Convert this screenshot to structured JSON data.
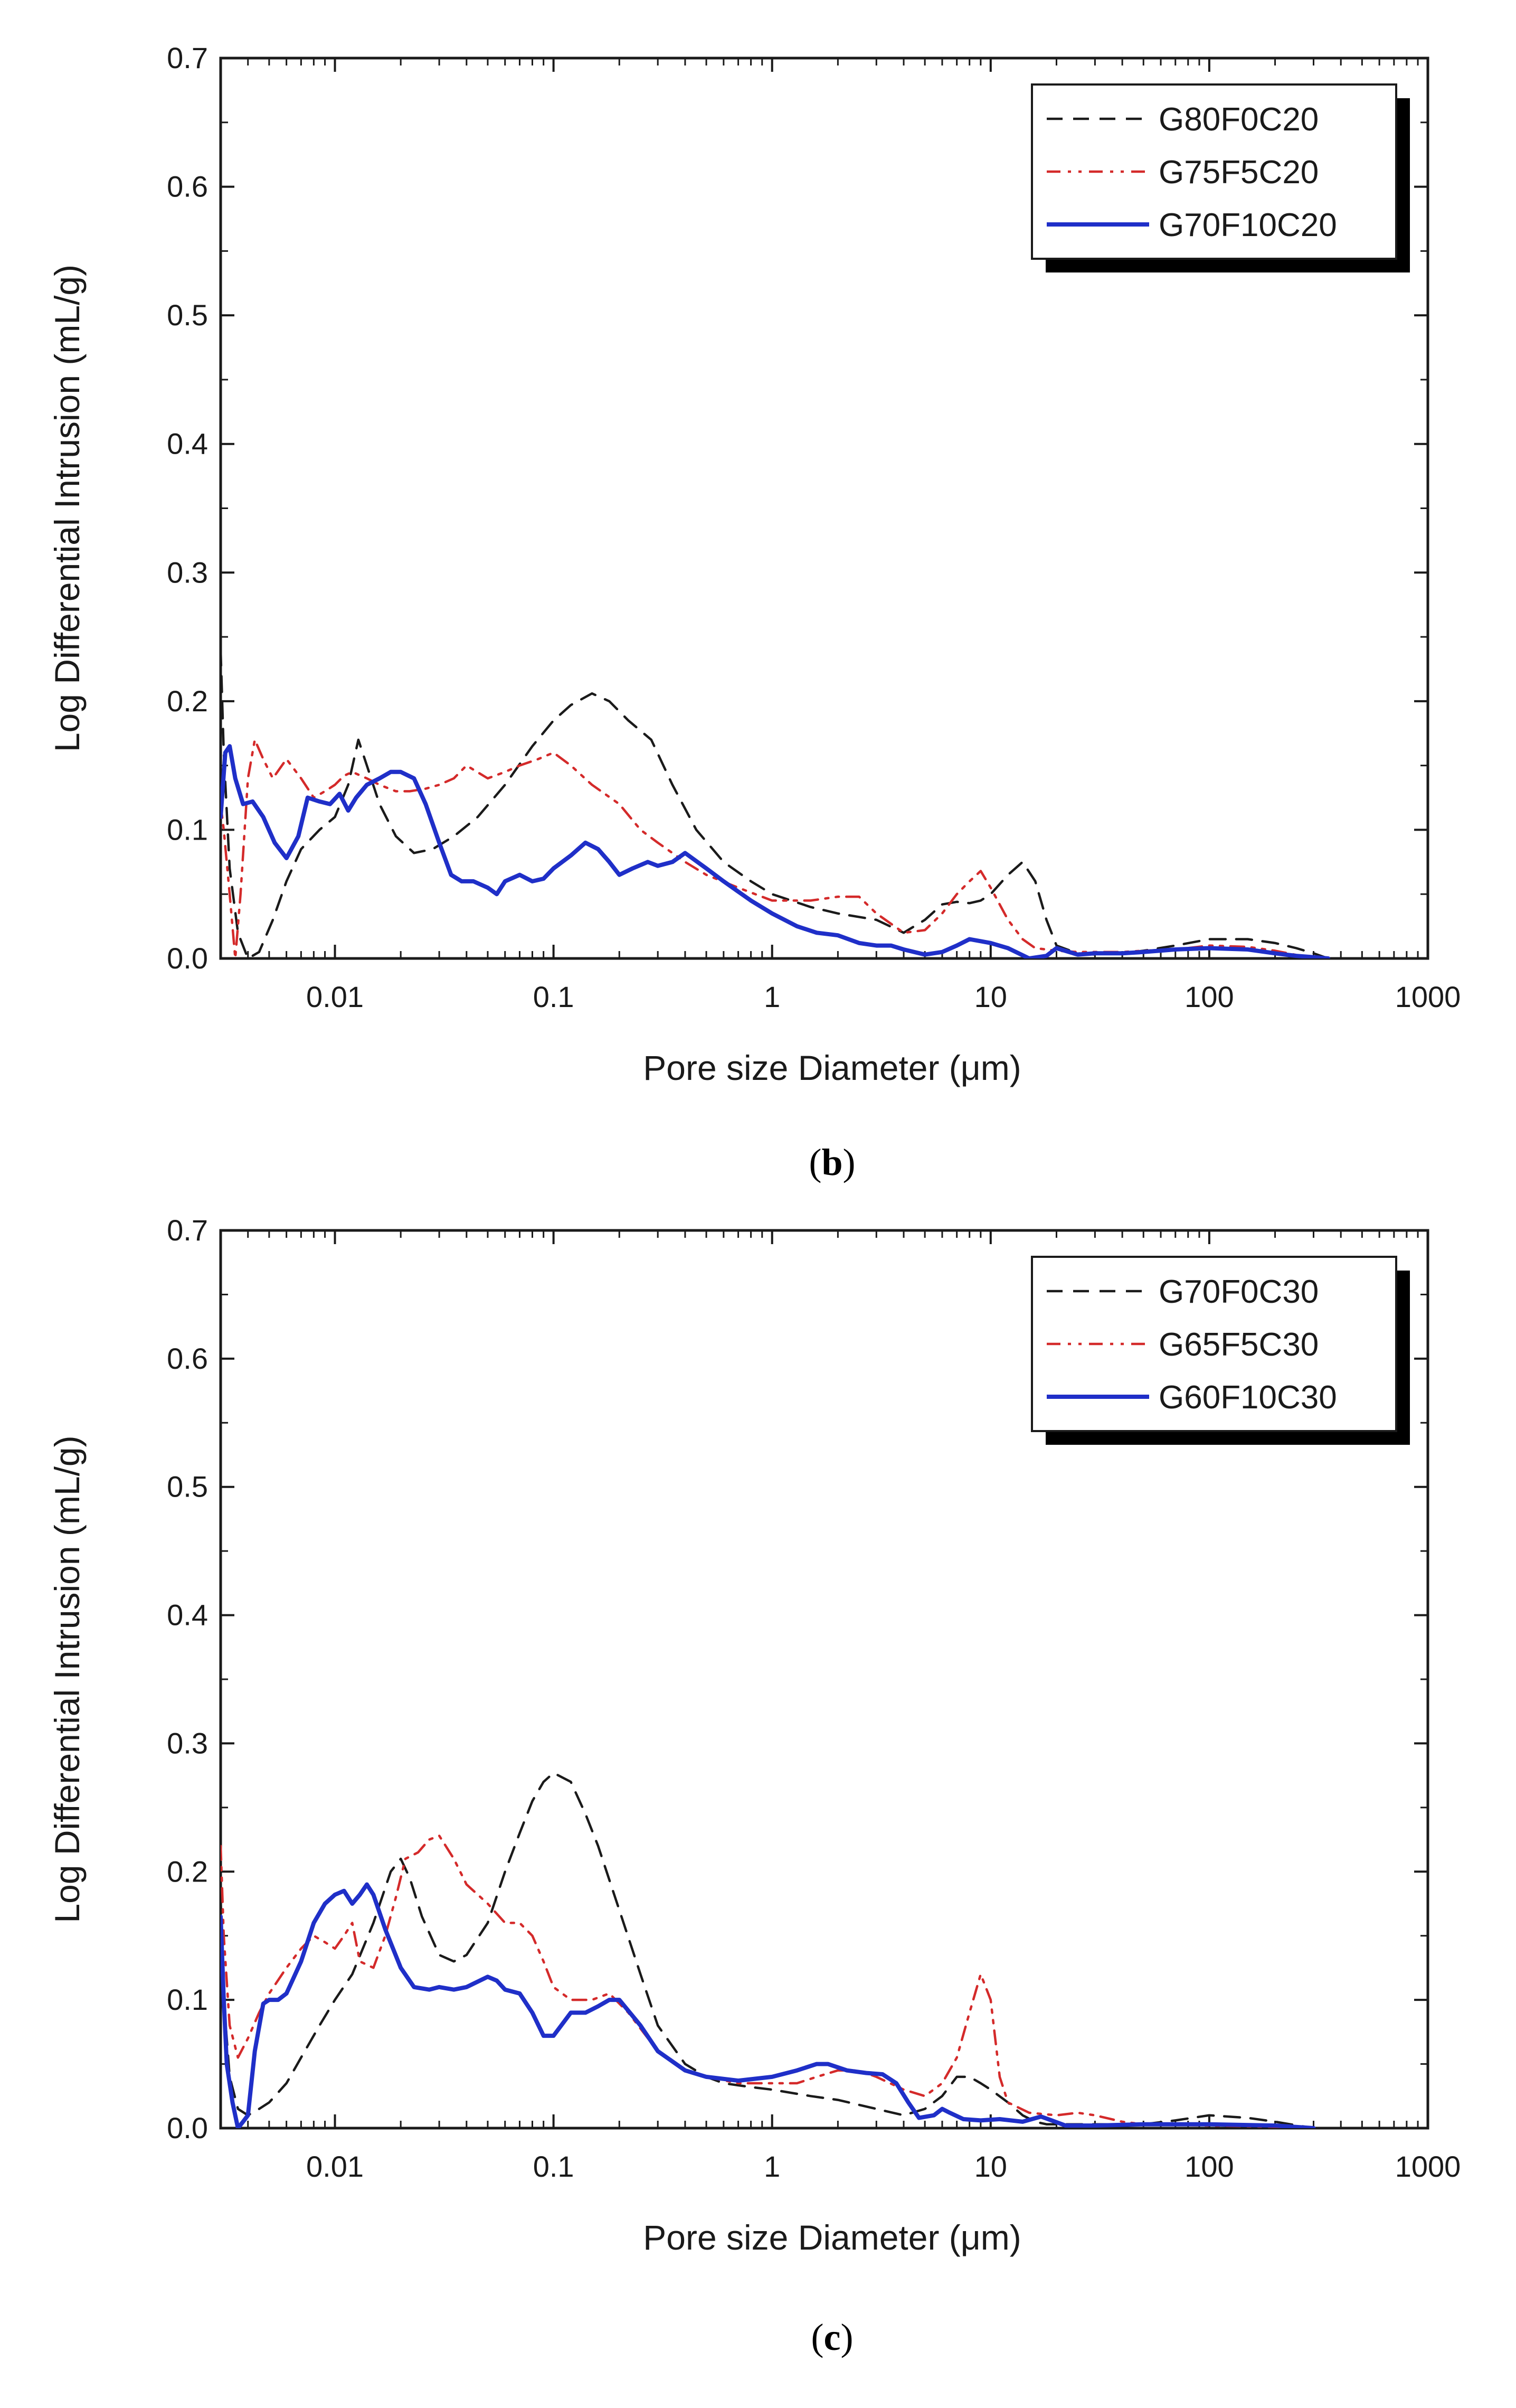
{
  "colors": {
    "series_black": "#1a1a1a",
    "series_red": "#d42a2a",
    "series_blue": "#1f2fc8",
    "axis": "#1a1a1a"
  },
  "chart_data": [
    {
      "id": "b",
      "type": "line",
      "caption_letter": "b",
      "xlabel": "Pore size Diameter (μm)",
      "ylabel": "Log Differential Intrusion (mL/g)",
      "xscale": "log",
      "xlim": [
        0.003,
        1000
      ],
      "ylim": [
        0,
        0.7
      ],
      "xticks": [
        0.01,
        0.1,
        1,
        10,
        100,
        1000
      ],
      "xtick_labels": [
        "0.01",
        "0.1",
        "1",
        "10",
        "100",
        "1000"
      ],
      "yticks": [
        0,
        0.1,
        0.2,
        0.3,
        0.4,
        0.5,
        0.6,
        0.7
      ],
      "ytick_labels": [
        "0.0",
        "0.1",
        "0.2",
        "0.3",
        "0.4",
        "0.5",
        "0.6",
        "0.7"
      ],
      "legend_position": "top-right",
      "series": [
        {
          "name": "G80F0C20",
          "color": "#1a1a1a",
          "dash": "dash",
          "x": [
            0.003,
            0.0031,
            0.0033,
            0.0036,
            0.004,
            0.0045,
            0.0052,
            0.006,
            0.007,
            0.0085,
            0.01,
            0.0115,
            0.0128,
            0.014,
            0.016,
            0.019,
            0.023,
            0.028,
            0.035,
            0.045,
            0.06,
            0.08,
            0.1,
            0.12,
            0.15,
            0.18,
            0.22,
            0.28,
            0.35,
            0.45,
            0.6,
            0.8,
            1,
            1.5,
            2,
            3,
            4,
            5,
            6,
            7,
            8,
            9,
            10,
            12,
            14,
            16,
            18,
            20,
            25,
            30,
            40,
            50,
            70,
            100,
            150,
            200,
            250,
            300,
            350
          ],
          "y": [
            0.24,
            0.16,
            0.07,
            0.02,
            0.0,
            0.005,
            0.03,
            0.06,
            0.085,
            0.1,
            0.11,
            0.135,
            0.17,
            0.15,
            0.12,
            0.095,
            0.082,
            0.085,
            0.095,
            0.11,
            0.135,
            0.165,
            0.185,
            0.197,
            0.206,
            0.2,
            0.185,
            0.17,
            0.135,
            0.1,
            0.075,
            0.06,
            0.05,
            0.04,
            0.035,
            0.03,
            0.02,
            0.03,
            0.042,
            0.044,
            0.043,
            0.045,
            0.05,
            0.065,
            0.075,
            0.06,
            0.03,
            0.01,
            0.004,
            0.003,
            0.004,
            0.006,
            0.01,
            0.015,
            0.015,
            0.012,
            0.008,
            0.004,
            0.0
          ]
        },
        {
          "name": "G75F5C20",
          "color": "#d42a2a",
          "dash": "dashdotdot",
          "x": [
            0.003,
            0.0031,
            0.0033,
            0.0035,
            0.0037,
            0.004,
            0.0043,
            0.0047,
            0.0052,
            0.006,
            0.007,
            0.008,
            0.009,
            0.01,
            0.011,
            0.012,
            0.014,
            0.016,
            0.019,
            0.022,
            0.026,
            0.03,
            0.035,
            0.04,
            0.05,
            0.06,
            0.07,
            0.085,
            0.1,
            0.12,
            0.15,
            0.2,
            0.25,
            0.3,
            0.4,
            0.5,
            0.7,
            1,
            1.5,
            2,
            2.5,
            3,
            4,
            5,
            6,
            7,
            8,
            9,
            10,
            12,
            14,
            16,
            20,
            25,
            30,
            40,
            50,
            70,
            100,
            150,
            200,
            300
          ],
          "y": [
            0.12,
            0.1,
            0.05,
            0.0,
            0.05,
            0.14,
            0.17,
            0.155,
            0.14,
            0.155,
            0.14,
            0.125,
            0.13,
            0.135,
            0.142,
            0.145,
            0.14,
            0.135,
            0.13,
            0.13,
            0.132,
            0.135,
            0.14,
            0.15,
            0.14,
            0.145,
            0.15,
            0.155,
            0.16,
            0.15,
            0.135,
            0.12,
            0.1,
            0.09,
            0.075,
            0.065,
            0.055,
            0.045,
            0.045,
            0.048,
            0.048,
            0.035,
            0.02,
            0.022,
            0.035,
            0.05,
            0.06,
            0.068,
            0.055,
            0.03,
            0.015,
            0.008,
            0.006,
            0.005,
            0.005,
            0.005,
            0.006,
            0.007,
            0.01,
            0.009,
            0.006,
            0.0
          ]
        },
        {
          "name": "G70F10C20",
          "color": "#1f2fc8",
          "dash": "solid",
          "x": [
            0.003,
            0.00315,
            0.0033,
            0.0035,
            0.0038,
            0.0042,
            0.0047,
            0.0053,
            0.006,
            0.0068,
            0.0075,
            0.0085,
            0.0095,
            0.0105,
            0.0115,
            0.0125,
            0.014,
            0.016,
            0.018,
            0.02,
            0.023,
            0.026,
            0.03,
            0.034,
            0.038,
            0.043,
            0.05,
            0.055,
            0.06,
            0.07,
            0.08,
            0.09,
            0.1,
            0.12,
            0.14,
            0.16,
            0.18,
            0.2,
            0.23,
            0.27,
            0.3,
            0.35,
            0.4,
            0.5,
            0.6,
            0.8,
            1,
            1.3,
            1.6,
            2,
            2.5,
            3,
            3.5,
            4,
            5,
            6,
            7,
            8,
            10,
            12,
            15,
            18,
            20,
            25,
            30,
            40,
            50,
            70,
            100,
            150,
            200,
            250,
            300,
            350
          ],
          "y": [
            0.11,
            0.16,
            0.165,
            0.14,
            0.12,
            0.122,
            0.11,
            0.09,
            0.078,
            0.095,
            0.125,
            0.122,
            0.12,
            0.128,
            0.115,
            0.125,
            0.135,
            0.14,
            0.145,
            0.145,
            0.14,
            0.12,
            0.09,
            0.065,
            0.06,
            0.06,
            0.055,
            0.05,
            0.06,
            0.065,
            0.06,
            0.062,
            0.07,
            0.08,
            0.09,
            0.085,
            0.075,
            0.065,
            0.07,
            0.075,
            0.072,
            0.075,
            0.082,
            0.07,
            0.06,
            0.045,
            0.035,
            0.025,
            0.02,
            0.018,
            0.012,
            0.01,
            0.01,
            0.007,
            0.003,
            0.005,
            0.01,
            0.015,
            0.012,
            0.008,
            0.0,
            0.002,
            0.008,
            0.003,
            0.004,
            0.004,
            0.005,
            0.007,
            0.008,
            0.007,
            0.004,
            0.002,
            0.001,
            0.0
          ]
        }
      ]
    },
    {
      "id": "c",
      "type": "line",
      "caption_letter": "c",
      "xlabel": "Pore size Diameter (μm)",
      "ylabel": "Log Differential Intrusion (mL/g)",
      "xscale": "log",
      "xlim": [
        0.003,
        1000
      ],
      "ylim": [
        0,
        0.7
      ],
      "xticks": [
        0.01,
        0.1,
        1,
        10,
        100,
        1000
      ],
      "xtick_labels": [
        "0.01",
        "0.1",
        "1",
        "10",
        "100",
        "1000"
      ],
      "yticks": [
        0,
        0.1,
        0.2,
        0.3,
        0.4,
        0.5,
        0.6,
        0.7
      ],
      "ytick_labels": [
        "0.0",
        "0.1",
        "0.2",
        "0.3",
        "0.4",
        "0.5",
        "0.6",
        "0.7"
      ],
      "legend_position": "top-right",
      "series": [
        {
          "name": "G70F0C30",
          "color": "#1a1a1a",
          "dash": "dash",
          "x": [
            0.003,
            0.0031,
            0.0033,
            0.0036,
            0.004,
            0.0045,
            0.005,
            0.006,
            0.007,
            0.0085,
            0.01,
            0.012,
            0.015,
            0.018,
            0.02,
            0.022,
            0.025,
            0.03,
            0.035,
            0.04,
            0.05,
            0.06,
            0.07,
            0.08,
            0.09,
            0.1,
            0.12,
            0.14,
            0.16,
            0.2,
            0.25,
            0.3,
            0.4,
            0.5,
            0.6,
            0.8,
            1,
            1.5,
            2,
            3,
            4,
            5,
            6,
            7,
            8,
            9,
            10,
            12,
            14,
            16,
            18,
            20,
            25,
            30,
            50,
            70,
            100,
            150,
            200,
            300
          ],
          "y": [
            0.18,
            0.1,
            0.04,
            0.015,
            0.01,
            0.015,
            0.02,
            0.035,
            0.055,
            0.08,
            0.1,
            0.12,
            0.16,
            0.2,
            0.21,
            0.195,
            0.165,
            0.135,
            0.13,
            0.135,
            0.16,
            0.2,
            0.23,
            0.255,
            0.27,
            0.277,
            0.27,
            0.245,
            0.22,
            0.17,
            0.12,
            0.08,
            0.05,
            0.04,
            0.035,
            0.032,
            0.03,
            0.025,
            0.022,
            0.015,
            0.01,
            0.015,
            0.025,
            0.04,
            0.04,
            0.035,
            0.03,
            0.02,
            0.01,
            0.005,
            0.003,
            0.003,
            0.003,
            0.003,
            0.003,
            0.006,
            0.01,
            0.008,
            0.005,
            0.0
          ]
        },
        {
          "name": "G65F5C30",
          "color": "#d42a2a",
          "dash": "dashdotdot",
          "x": [
            0.003,
            0.0031,
            0.0033,
            0.0036,
            0.004,
            0.0045,
            0.005,
            0.006,
            0.007,
            0.008,
            0.009,
            0.01,
            0.011,
            0.012,
            0.013,
            0.015,
            0.017,
            0.019,
            0.021,
            0.024,
            0.027,
            0.03,
            0.035,
            0.04,
            0.05,
            0.06,
            0.07,
            0.08,
            0.09,
            0.1,
            0.12,
            0.15,
            0.18,
            0.22,
            0.3,
            0.4,
            0.5,
            0.7,
            1,
            1.3,
            1.6,
            2,
            2.5,
            3,
            4,
            5,
            6,
            7,
            8,
            9,
            10,
            11,
            12,
            15,
            20,
            25,
            30,
            40,
            50,
            100,
            200,
            300
          ],
          "y": [
            0.22,
            0.15,
            0.08,
            0.055,
            0.07,
            0.09,
            0.105,
            0.125,
            0.14,
            0.15,
            0.145,
            0.14,
            0.15,
            0.16,
            0.13,
            0.125,
            0.15,
            0.18,
            0.21,
            0.215,
            0.225,
            0.228,
            0.21,
            0.19,
            0.175,
            0.16,
            0.16,
            0.15,
            0.13,
            0.11,
            0.1,
            0.1,
            0.105,
            0.09,
            0.06,
            0.045,
            0.04,
            0.035,
            0.035,
            0.035,
            0.04,
            0.045,
            0.045,
            0.04,
            0.03,
            0.025,
            0.035,
            0.055,
            0.09,
            0.12,
            0.1,
            0.04,
            0.02,
            0.012,
            0.01,
            0.012,
            0.01,
            0.005,
            0.003,
            0.002,
            0.001,
            0.0
          ]
        },
        {
          "name": "G60F10C30",
          "color": "#1f2fc8",
          "dash": "solid",
          "x": [
            0.003,
            0.0031,
            0.0032,
            0.0034,
            0.0036,
            0.0038,
            0.004,
            0.0043,
            0.0047,
            0.005,
            0.0055,
            0.006,
            0.007,
            0.008,
            0.009,
            0.01,
            0.011,
            0.012,
            0.013,
            0.014,
            0.015,
            0.017,
            0.02,
            0.023,
            0.027,
            0.03,
            0.035,
            0.04,
            0.05,
            0.055,
            0.06,
            0.07,
            0.08,
            0.09,
            0.1,
            0.12,
            0.14,
            0.16,
            0.18,
            0.2,
            0.25,
            0.3,
            0.4,
            0.5,
            0.7,
            1,
            1.3,
            1.6,
            1.8,
            2.2,
            2.7,
            3.2,
            3.7,
            4.2,
            4.7,
            5.5,
            6,
            6.5,
            7.5,
            9,
            11,
            14,
            17,
            19,
            22,
            30,
            50,
            100,
            200,
            300
          ],
          "y": [
            0.165,
            0.1,
            0.05,
            0.02,
            0.0,
            0.005,
            0.01,
            0.06,
            0.097,
            0.1,
            0.1,
            0.105,
            0.13,
            0.16,
            0.175,
            0.182,
            0.185,
            0.175,
            0.182,
            0.19,
            0.182,
            0.155,
            0.125,
            0.11,
            0.108,
            0.11,
            0.108,
            0.11,
            0.118,
            0.115,
            0.108,
            0.105,
            0.09,
            0.072,
            0.072,
            0.09,
            0.09,
            0.095,
            0.1,
            0.1,
            0.08,
            0.06,
            0.045,
            0.04,
            0.037,
            0.04,
            0.045,
            0.05,
            0.05,
            0.045,
            0.043,
            0.042,
            0.035,
            0.02,
            0.008,
            0.01,
            0.015,
            0.012,
            0.007,
            0.006,
            0.007,
            0.005,
            0.009,
            0.006,
            0.002,
            0.002,
            0.003,
            0.003,
            0.002,
            0.0
          ]
        }
      ]
    }
  ]
}
